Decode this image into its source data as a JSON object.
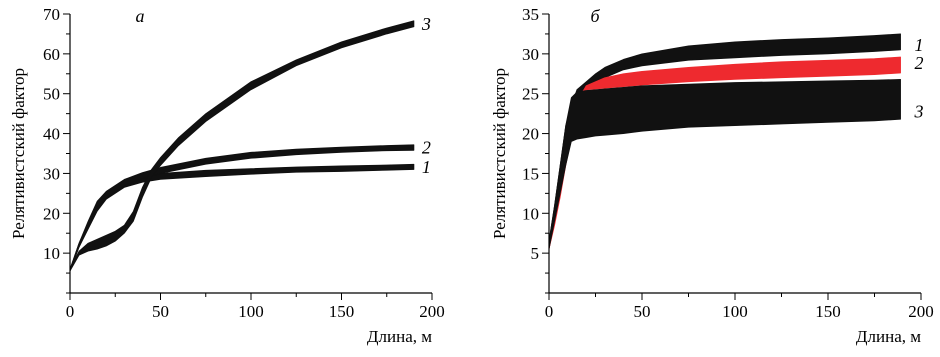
{
  "chart_data": [
    {
      "type": "area",
      "panel_letter": "а",
      "xlabel": "Длина, м",
      "ylabel": "Релятивистский фактор",
      "xlim": [
        0,
        200
      ],
      "ylim": [
        0,
        70
      ],
      "x_ticks": [
        0,
        50,
        100,
        150,
        200
      ],
      "x_tick_labels": [
        "0",
        "50",
        "100",
        "150",
        "200"
      ],
      "y_ticks": [
        10,
        20,
        30,
        40,
        50,
        60,
        70
      ],
      "y_tick_labels": [
        "10",
        "20",
        "30",
        "40",
        "50",
        "60",
        "70"
      ],
      "grid": false,
      "legend": "none",
      "series": [
        {
          "name": "1",
          "color": "#111111",
          "x": [
            0,
            5,
            10,
            15,
            20,
            30,
            40,
            50,
            75,
            100,
            125,
            150,
            175,
            190
          ],
          "low": [
            5.5,
            11.5,
            16,
            20.5,
            23.5,
            26.5,
            27.8,
            28.5,
            29.2,
            29.8,
            30.3,
            30.5,
            30.8,
            31
          ],
          "high": [
            6,
            12.5,
            17.5,
            22.5,
            25,
            28,
            29.3,
            30,
            30.8,
            31.2,
            31.6,
            31.9,
            32.1,
            32.3
          ]
        },
        {
          "name": "2",
          "color": "#111111",
          "x": [
            0,
            5,
            10,
            15,
            20,
            30,
            40,
            50,
            75,
            100,
            125,
            150,
            175,
            190
          ],
          "low": [
            5.5,
            11.5,
            16.5,
            21.5,
            23.8,
            27,
            28.7,
            30,
            32.3,
            33.8,
            34.7,
            35.3,
            35.7,
            35.8
          ],
          "high": [
            6,
            12.5,
            18,
            23,
            25.5,
            28.5,
            30.2,
            31.5,
            33.8,
            35.3,
            36.1,
            36.6,
            37,
            37.2
          ]
        },
        {
          "name": "3",
          "color": "#111111",
          "x": [
            0,
            5,
            10,
            15,
            20,
            25,
            30,
            35,
            40,
            45,
            50,
            60,
            75,
            100,
            125,
            150,
            175,
            190
          ],
          "low": [
            5.5,
            9.5,
            10.5,
            11,
            11.8,
            13,
            15,
            18,
            24,
            29,
            32,
            37,
            43,
            51,
            57,
            61.5,
            65,
            66.8
          ],
          "high": [
            6,
            10.5,
            12.5,
            13.5,
            14.5,
            15.5,
            17,
            20.5,
            26.5,
            31,
            34,
            39,
            45,
            53,
            58.5,
            63,
            66.5,
            68.3
          ]
        }
      ]
    },
    {
      "type": "area",
      "panel_letter": "б",
      "xlabel": "Длина, м",
      "ylabel": "Релятивистский фактор",
      "xlim": [
        0,
        200
      ],
      "ylim": [
        0,
        35
      ],
      "x_ticks": [
        0,
        50,
        100,
        150,
        200
      ],
      "x_tick_labels": [
        "0",
        "50",
        "100",
        "150",
        "200"
      ],
      "y_ticks": [
        5,
        10,
        15,
        20,
        25,
        30,
        35
      ],
      "y_tick_labels": [
        "5",
        "10",
        "15",
        "20",
        "25",
        "30",
        "35"
      ],
      "grid": false,
      "legend": "none",
      "series": [
        {
          "name": "1",
          "color": "#111111",
          "x": [
            0,
            3,
            6,
            9,
            12,
            15,
            20,
            25,
            30,
            40,
            50,
            75,
            100,
            125,
            150,
            175,
            189
          ],
          "low": [
            5.5,
            9,
            13,
            17,
            21,
            24.5,
            26,
            26.5,
            27,
            28,
            28.5,
            29.2,
            29.5,
            29.8,
            30,
            30.3,
            30.5
          ],
          "high": [
            6.5,
            11,
            16,
            21,
            23.5,
            25.5,
            26.5,
            27.5,
            28.3,
            29.3,
            30,
            31,
            31.5,
            31.8,
            32,
            32.3,
            32.5
          ]
        },
        {
          "name": "2",
          "color": "#ee2a2f",
          "x": [
            0,
            3,
            6,
            9,
            12,
            15,
            20,
            25,
            30,
            40,
            50,
            75,
            100,
            125,
            150,
            175,
            189
          ],
          "low": [
            5.5,
            8.5,
            12,
            16,
            19.5,
            22.5,
            25.5,
            25.6,
            25.7,
            25.9,
            26.1,
            26.5,
            26.8,
            27,
            27.2,
            27.4,
            27.6
          ],
          "high": [
            6,
            9.5,
            13.5,
            17.5,
            21,
            24,
            26,
            26.5,
            27,
            27.5,
            27.8,
            28.3,
            28.7,
            29,
            29.2,
            29.4,
            29.6
          ]
        },
        {
          "name": "3",
          "color": "#111111",
          "x": [
            0,
            3,
            6,
            9,
            12,
            15,
            20,
            25,
            30,
            40,
            50,
            75,
            100,
            125,
            150,
            175,
            189
          ],
          "low": [
            5.5,
            9,
            12.5,
            16,
            19,
            19.3,
            19.5,
            19.7,
            19.8,
            20,
            20.3,
            20.8,
            21,
            21.2,
            21.4,
            21.6,
            21.8
          ],
          "high": [
            6.5,
            11,
            16,
            21,
            24.5,
            25.2,
            25.4,
            25.5,
            25.6,
            25.8,
            26,
            26.2,
            26.4,
            26.5,
            26.6,
            26.7,
            26.8
          ]
        }
      ]
    }
  ]
}
